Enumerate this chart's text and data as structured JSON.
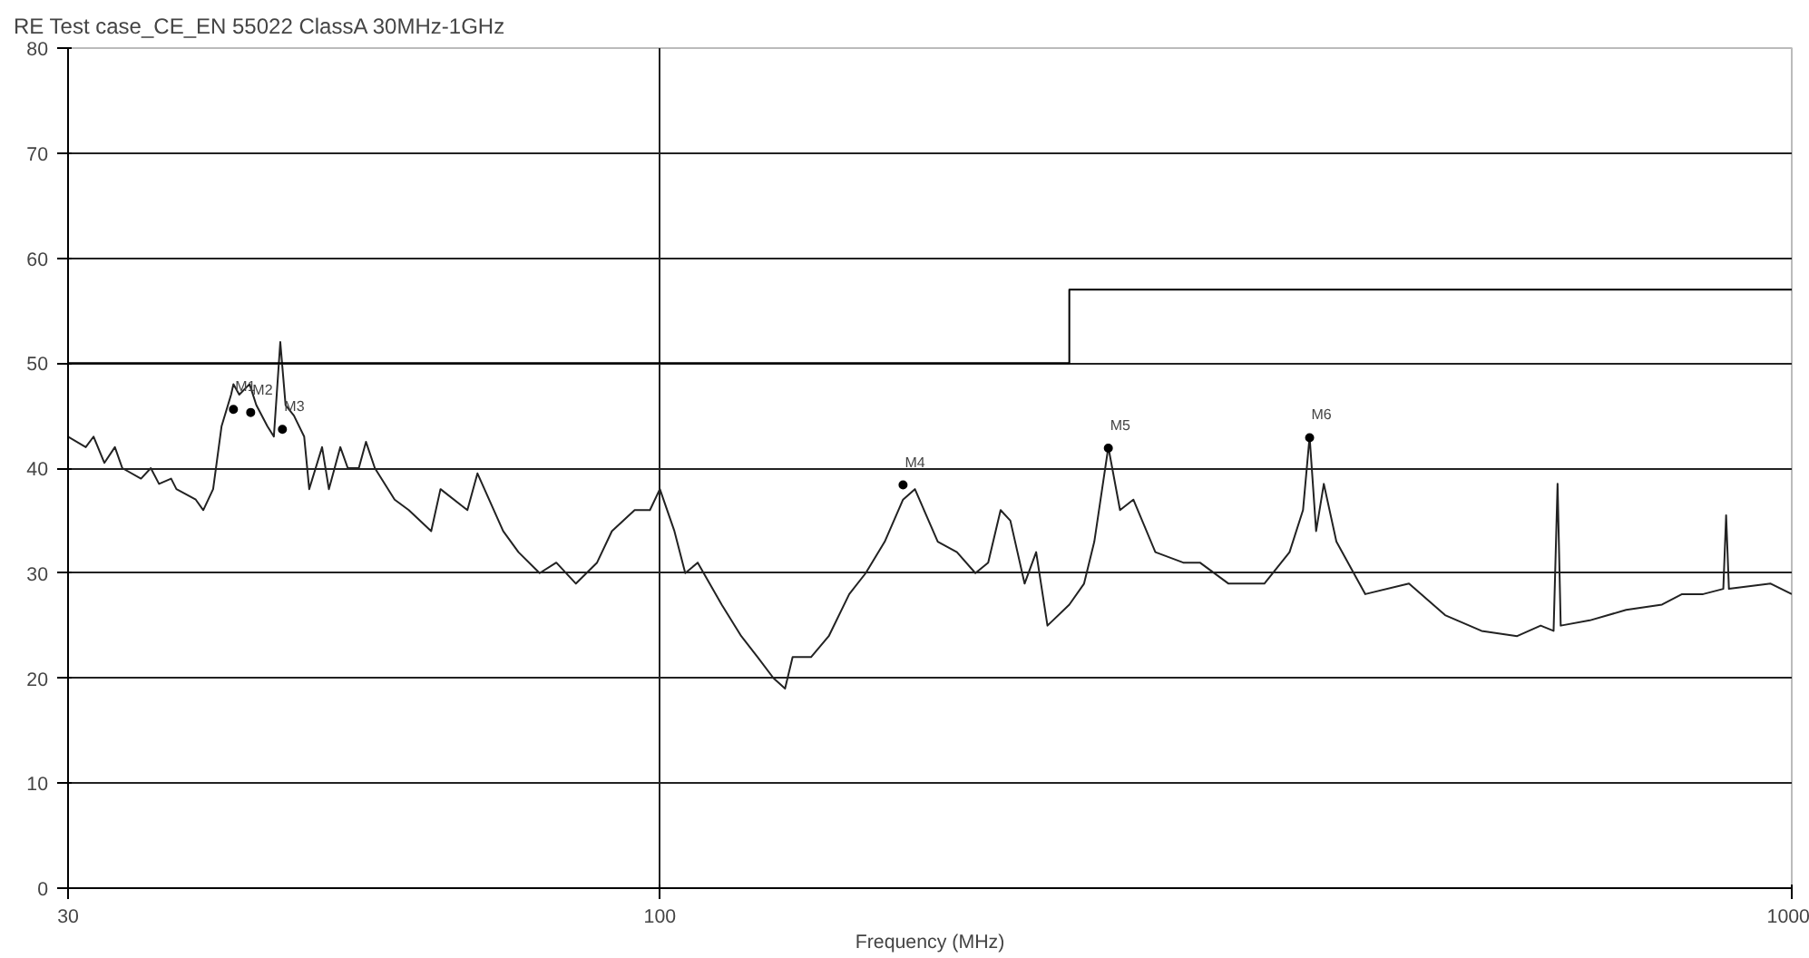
{
  "chart_data": {
    "type": "line",
    "title": "RE Test case_CE_EN 55022 ClassA 30MHz-1GHz",
    "xlabel": "Frequency (MHz)",
    "log": "x",
    "xlim": [
      30,
      1000
    ],
    "xticks": [
      30,
      100,
      1000
    ],
    "ylim": [
      0,
      80
    ],
    "yticks": [
      0,
      10,
      20,
      30,
      40,
      50,
      60,
      70,
      80
    ],
    "grid": true,
    "series": [
      {
        "color": "#222222",
        "x": [
          30,
          31.1,
          31.6,
          32.3,
          33,
          33.5,
          34.8,
          35.5,
          36.1,
          37,
          37.4,
          38.9,
          39.5,
          40.3,
          41,
          41.8,
          42,
          42.5,
          43.4,
          44,
          45,
          45.6,
          46.2,
          46.7,
          47.5,
          48.5,
          49,
          50.3,
          51,
          52.2,
          53,
          54.2,
          55,
          56,
          58.3,
          60,
          62.8,
          64,
          67.6,
          69,
          72.7,
          75,
          78.3,
          81,
          84.3,
          88,
          90.7,
          95,
          98,
          100,
          103,
          105.3,
          108,
          113.4,
          118,
          122,
          126,
          129,
          131,
          136,
          141,
          147,
          152,
          158,
          164,
          168,
          176,
          183,
          190,
          195,
          200,
          204,
          210,
          215,
          220,
          230,
          237,
          242,
          249,
          255,
          262,
          274,
          290,
          300,
          318,
          342,
          360,
          370,
          375,
          380,
          386,
          396,
          420,
          459,
          494,
          532,
          572,
          600,
          616,
          621,
          625,
          663,
          714,
          768,
          800,
          835,
          870,
          875,
          880,
          958,
          1000
        ],
        "values": [
          43,
          42,
          43,
          40.5,
          42,
          40,
          39,
          40,
          38.5,
          39,
          38,
          37,
          36,
          38,
          44,
          47,
          48,
          47,
          48,
          46,
          44,
          43,
          52,
          46,
          45,
          43,
          38,
          42,
          38,
          42,
          40,
          40,
          42.5,
          40,
          37,
          36,
          34,
          38,
          36,
          39.5,
          34,
          32,
          30,
          31,
          29,
          31,
          34,
          36,
          36,
          38,
          34,
          30,
          31,
          27,
          24,
          22,
          20,
          19,
          22,
          22,
          24,
          28,
          30,
          33,
          37,
          38,
          33,
          32,
          30,
          31,
          36,
          35,
          29,
          32,
          25,
          27,
          29,
          33,
          42,
          36,
          37,
          32,
          31,
          31,
          29,
          29,
          32,
          36,
          43,
          34,
          38.5,
          33,
          28,
          29,
          26,
          24.5,
          24,
          25,
          24.5,
          38.5,
          25,
          25.5,
          26.5,
          27,
          28,
          28,
          28.5,
          35.5,
          28.5,
          29,
          28
        ]
      },
      {
        "type": "line",
        "color": "#000000",
        "x": [
          30,
          230,
          230,
          1000
        ],
        "values": [
          50,
          50,
          57,
          57
        ]
      },
      {
        "type": "scatter",
        "color": "#000000",
        "marker": "circle",
        "x": [
          42.0,
          43.5,
          46.4,
          164,
          249,
          375
        ],
        "values": [
          45.6,
          45.3,
          43.7,
          38.4,
          41.9,
          42.9
        ]
      }
    ],
    "annotations": [
      {
        "text": "M1",
        "x": 42.0,
        "y": 45.6
      },
      {
        "text": "M2",
        "x": 43.5,
        "y": 45.3
      },
      {
        "text": "M3",
        "x": 46.4,
        "y": 43.7
      },
      {
        "text": "M4",
        "x": 164,
        "y": 38.4
      },
      {
        "text": "M5",
        "x": 249,
        "y": 41.9
      },
      {
        "text": "M6",
        "x": 375,
        "y": 42.9
      }
    ]
  }
}
